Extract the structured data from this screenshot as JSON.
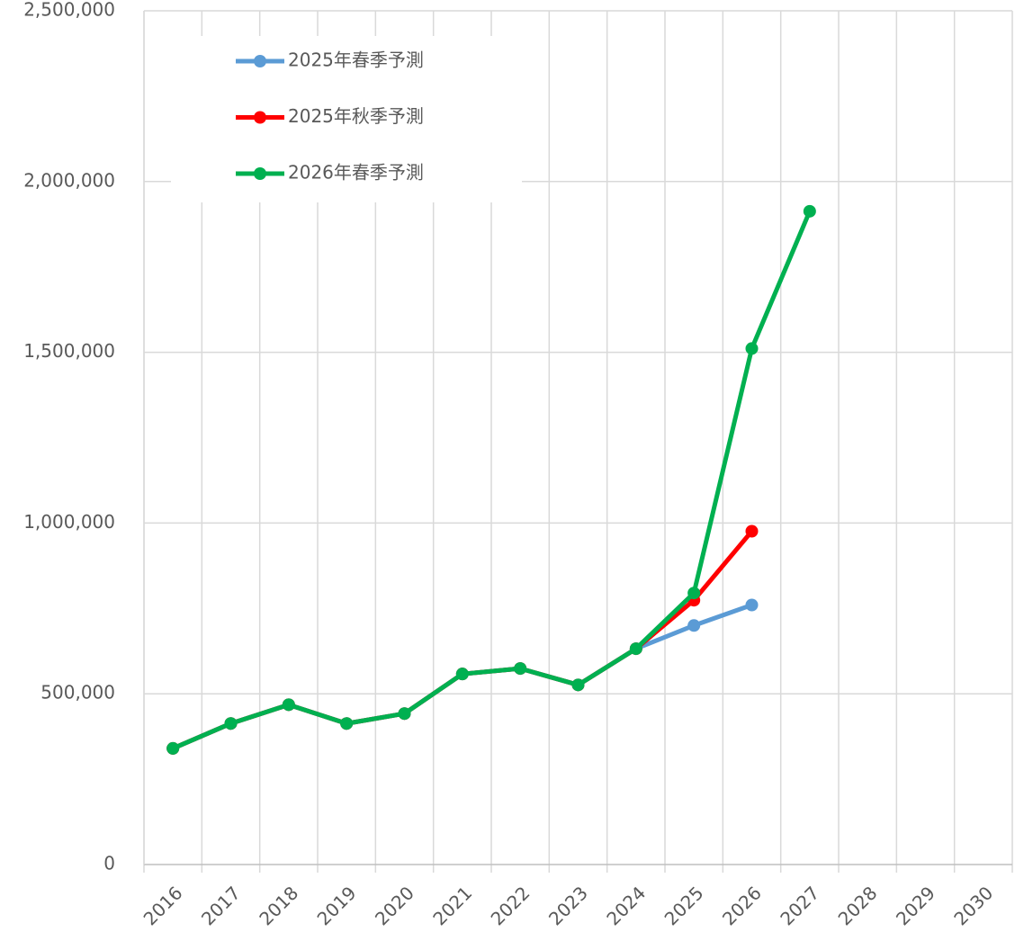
{
  "chart_data": {
    "type": "line",
    "categories": [
      "2016",
      "2017",
      "2018",
      "2019",
      "2020",
      "2021",
      "2022",
      "2023",
      "2024",
      "2025",
      "2026",
      "2027",
      "2028",
      "2029",
      "2030"
    ],
    "series": [
      {
        "name": "2025年春季予測",
        "color": "#5b9bd5",
        "values": [
          340000,
          413000,
          468000,
          413000,
          442000,
          558000,
          574000,
          526000,
          632000,
          700000,
          760000,
          null,
          null,
          null,
          null
        ]
      },
      {
        "name": "2025年秋季予測",
        "color": "#ff0000",
        "values": [
          340000,
          413000,
          468000,
          413000,
          442000,
          558000,
          574000,
          526000,
          632000,
          774000,
          976000,
          null,
          null,
          null,
          null
        ]
      },
      {
        "name": "2026年春季予測",
        "color": "#00b050",
        "values": [
          340000,
          413000,
          468000,
          413000,
          442000,
          558000,
          574000,
          526000,
          632000,
          795000,
          1511000,
          1913000,
          null,
          null,
          null
        ]
      }
    ],
    "ylim": [
      0,
      2500000
    ],
    "yticks": [
      0,
      {
        "value": 500000,
        "label": "500,000"
      },
      {
        "value": 1000000,
        "label": "1,000,000"
      },
      {
        "value": 1500000,
        "label": "1,500,000"
      },
      {
        "value": 2000000,
        "label": "2,000,000"
      },
      {
        "value": 2500000,
        "label": "2,500,000"
      }
    ],
    "grid": true,
    "legend": "upper left"
  }
}
